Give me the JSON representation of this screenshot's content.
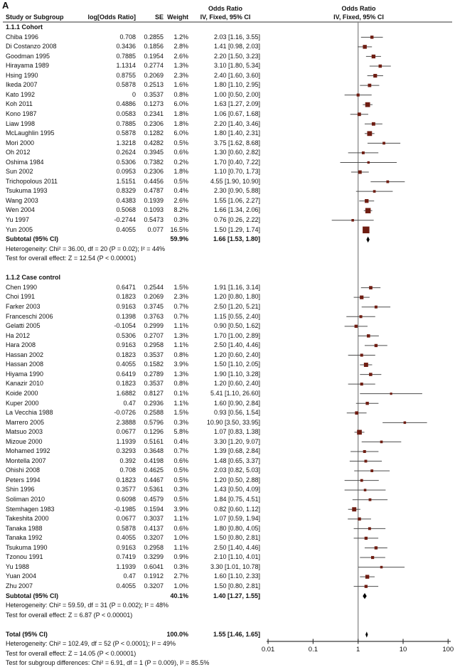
{
  "figure_label": "A",
  "columns": {
    "study": "Study or Subgroup",
    "logor": "log[Odds Ratio]",
    "se": "SE",
    "weight": "Weight",
    "or_line1": "Odds Ratio",
    "or_line2": "IV, Fixed, 95% CI"
  },
  "colors": {
    "marker": "#6f1d12",
    "ci_line": "#4d4d4d",
    "diamond": "#000000",
    "axis": "#3a3a3a",
    "no_effect_line": "#808080",
    "header_rule": "#333333",
    "text": "#111111"
  },
  "chart_data": {
    "type": "forest",
    "effect_measure": "Odds Ratio, IV, Fixed, 95% CI",
    "axis": {
      "scale": "log",
      "ticks": [
        "0.01",
        "0.1",
        "1",
        "10",
        "100"
      ],
      "min": 0.01,
      "max": 100
    },
    "sections": [
      {
        "label": "1.1.1 Cohort",
        "studies": [
          {
            "name": "Chiba 1996",
            "logor": "0.708",
            "se": "0.2855",
            "weight": "1.2%",
            "or": 2.03,
            "lo": 1.16,
            "hi": 3.55
          },
          {
            "name": "Di Costanzo 2008",
            "logor": "0.3436",
            "se": "0.1856",
            "weight": "2.8%",
            "or": 1.41,
            "lo": 0.98,
            "hi": 2.03
          },
          {
            "name": "Goodman 1995",
            "logor": "0.7885",
            "se": "0.1954",
            "weight": "2.6%",
            "or": 2.2,
            "lo": 1.5,
            "hi": 3.23
          },
          {
            "name": "Hirayama 1989",
            "logor": "1.1314",
            "se": "0.2774",
            "weight": "1.3%",
            "or": 3.1,
            "lo": 1.8,
            "hi": 5.34
          },
          {
            "name": "Hsing 1990",
            "logor": "0.8755",
            "se": "0.2069",
            "weight": "2.3%",
            "or": 2.4,
            "lo": 1.6,
            "hi": 3.6
          },
          {
            "name": "Ikeda 2007",
            "logor": "0.5878",
            "se": "0.2513",
            "weight": "1.6%",
            "or": 1.8,
            "lo": 1.1,
            "hi": 2.95
          },
          {
            "name": "Kato 1992",
            "logor": "0",
            "se": "0.3537",
            "weight": "0.8%",
            "or": 1.0,
            "lo": 0.5,
            "hi": 2.0
          },
          {
            "name": "Koh 2011",
            "logor": "0.4886",
            "se": "0.1273",
            "weight": "6.0%",
            "or": 1.63,
            "lo": 1.27,
            "hi": 2.09
          },
          {
            "name": "Kono 1987",
            "logor": "0.0583",
            "se": "0.2341",
            "weight": "1.8%",
            "or": 1.06,
            "lo": 0.67,
            "hi": 1.68
          },
          {
            "name": "Liaw 1998",
            "logor": "0.7885",
            "se": "0.2306",
            "weight": "1.8%",
            "or": 2.2,
            "lo": 1.4,
            "hi": 3.46
          },
          {
            "name": "McLaughlin 1995",
            "logor": "0.5878",
            "se": "0.1282",
            "weight": "6.0%",
            "or": 1.8,
            "lo": 1.4,
            "hi": 2.31
          },
          {
            "name": "Mori 2000",
            "logor": "1.3218",
            "se": "0.4282",
            "weight": "0.5%",
            "or": 3.75,
            "lo": 1.62,
            "hi": 8.68
          },
          {
            "name": "Oh 2012",
            "logor": "0.2624",
            "se": "0.3945",
            "weight": "0.6%",
            "or": 1.3,
            "lo": 0.6,
            "hi": 2.82
          },
          {
            "name": "Oshima 1984",
            "logor": "0.5306",
            "se": "0.7382",
            "weight": "0.2%",
            "or": 1.7,
            "lo": 0.4,
            "hi": 7.22
          },
          {
            "name": "Sun 2002",
            "logor": "0.0953",
            "se": "0.2306",
            "weight": "1.8%",
            "or": 1.1,
            "lo": 0.7,
            "hi": 1.73
          },
          {
            "name": "Trichopolous 2011",
            "logor": "1.5151",
            "se": "0.4456",
            "weight": "0.5%",
            "or": 4.55,
            "lo": 1.9,
            "hi": 10.9
          },
          {
            "name": "Tsukuma 1993",
            "logor": "0.8329",
            "se": "0.4787",
            "weight": "0.4%",
            "or": 2.3,
            "lo": 0.9,
            "hi": 5.88
          },
          {
            "name": "Wang 2003",
            "logor": "0.4383",
            "se": "0.1939",
            "weight": "2.6%",
            "or": 1.55,
            "lo": 1.06,
            "hi": 2.27
          },
          {
            "name": "Wen 2004",
            "logor": "0.5068",
            "se": "0.1093",
            "weight": "8.2%",
            "or": 1.66,
            "lo": 1.34,
            "hi": 2.06
          },
          {
            "name": "Yu 1997",
            "logor": "-0.2744",
            "se": "0.5473",
            "weight": "0.3%",
            "or": 0.76,
            "lo": 0.26,
            "hi": 2.22
          },
          {
            "name": "Yun 2005",
            "logor": "0.4055",
            "se": "0.077",
            "weight": "16.5%",
            "or": 1.5,
            "lo": 1.29,
            "hi": 1.74
          }
        ],
        "subtotal": {
          "label": "Subtotal (95% CI)",
          "weight": "59.9%",
          "or": 1.66,
          "lo": 1.53,
          "hi": 1.8
        },
        "heterogeneity": "Heterogeneity: Chi² = 36.00, df = 20 (P = 0.02); I² = 44%",
        "overall_effect": "Test for overall effect: Z = 12.54 (P < 0.00001)"
      },
      {
        "label": "1.1.2 Case control",
        "studies": [
          {
            "name": "Chen 1990",
            "logor": "0.6471",
            "se": "0.2544",
            "weight": "1.5%",
            "or": 1.91,
            "lo": 1.16,
            "hi": 3.14
          },
          {
            "name": "Choi 1991",
            "logor": "0.1823",
            "se": "0.2069",
            "weight": "2.3%",
            "or": 1.2,
            "lo": 0.8,
            "hi": 1.8
          },
          {
            "name": "Farker 2003",
            "logor": "0.9163",
            "se": "0.3745",
            "weight": "0.7%",
            "or": 2.5,
            "lo": 1.2,
            "hi": 5.21
          },
          {
            "name": "Franceschi 2006",
            "logor": "0.1398",
            "se": "0.3763",
            "weight": "0.7%",
            "or": 1.15,
            "lo": 0.55,
            "hi": 2.4
          },
          {
            "name": "Gelatti 2005",
            "logor": "-0.1054",
            "se": "0.2999",
            "weight": "1.1%",
            "or": 0.9,
            "lo": 0.5,
            "hi": 1.62
          },
          {
            "name": "Ha 2012",
            "logor": "0.5306",
            "se": "0.2707",
            "weight": "1.3%",
            "or": 1.7,
            "lo": 1.0,
            "hi": 2.89
          },
          {
            "name": "Hara 2008",
            "logor": "0.9163",
            "se": "0.2958",
            "weight": "1.1%",
            "or": 2.5,
            "lo": 1.4,
            "hi": 4.46
          },
          {
            "name": "Hassan 2002",
            "logor": "0.1823",
            "se": "0.3537",
            "weight": "0.8%",
            "or": 1.2,
            "lo": 0.6,
            "hi": 2.4
          },
          {
            "name": "Hassan 2008",
            "logor": "0.4055",
            "se": "0.1582",
            "weight": "3.9%",
            "or": 1.5,
            "lo": 1.1,
            "hi": 2.05
          },
          {
            "name": "Hiyama 1990",
            "logor": "0.6419",
            "se": "0.2789",
            "weight": "1.3%",
            "or": 1.9,
            "lo": 1.1,
            "hi": 3.28
          },
          {
            "name": "Kanazir 2010",
            "logor": "0.1823",
            "se": "0.3537",
            "weight": "0.8%",
            "or": 1.2,
            "lo": 0.6,
            "hi": 2.4
          },
          {
            "name": "Koide 2000",
            "logor": "1.6882",
            "se": "0.8127",
            "weight": "0.1%",
            "or": 5.41,
            "lo": 1.1,
            "hi": 26.6
          },
          {
            "name": "Kuper 2000",
            "logor": "0.47",
            "se": "0.2936",
            "weight": "1.1%",
            "or": 1.6,
            "lo": 0.9,
            "hi": 2.84
          },
          {
            "name": "La Vecchia 1988",
            "logor": "-0.0726",
            "se": "0.2588",
            "weight": "1.5%",
            "or": 0.93,
            "lo": 0.56,
            "hi": 1.54
          },
          {
            "name": "Marrero 2005",
            "logor": "2.3888",
            "se": "0.5796",
            "weight": "0.3%",
            "or": 10.9,
            "lo": 3.5,
            "hi": 33.95
          },
          {
            "name": "Matsuo 2003",
            "logor": "0.0677",
            "se": "0.1296",
            "weight": "5.8%",
            "or": 1.07,
            "lo": 0.83,
            "hi": 1.38
          },
          {
            "name": "Mizoue 2000",
            "logor": "1.1939",
            "se": "0.5161",
            "weight": "0.4%",
            "or": 3.3,
            "lo": 1.2,
            "hi": 9.07
          },
          {
            "name": "Mohamed 1992",
            "logor": "0.3293",
            "se": "0.3648",
            "weight": "0.7%",
            "or": 1.39,
            "lo": 0.68,
            "hi": 2.84
          },
          {
            "name": "Montella 2007",
            "logor": "0.392",
            "se": "0.4198",
            "weight": "0.6%",
            "or": 1.48,
            "lo": 0.65,
            "hi": 3.37
          },
          {
            "name": "Ohishi 2008",
            "logor": "0.708",
            "se": "0.4625",
            "weight": "0.5%",
            "or": 2.03,
            "lo": 0.82,
            "hi": 5.03
          },
          {
            "name": "Peters 1994",
            "logor": "0.1823",
            "se": "0.4467",
            "weight": "0.5%",
            "or": 1.2,
            "lo": 0.5,
            "hi": 2.88
          },
          {
            "name": "Shin 1996",
            "logor": "0.3577",
            "se": "0.5361",
            "weight": "0.3%",
            "or": 1.43,
            "lo": 0.5,
            "hi": 4.09
          },
          {
            "name": "Soliman 2010",
            "logor": "0.6098",
            "se": "0.4579",
            "weight": "0.5%",
            "or": 1.84,
            "lo": 0.75,
            "hi": 4.51
          },
          {
            "name": "Stemhagen 1983",
            "logor": "-0.1985",
            "se": "0.1594",
            "weight": "3.9%",
            "or": 0.82,
            "lo": 0.6,
            "hi": 1.12
          },
          {
            "name": "Takeshita 2000",
            "logor": "0.0677",
            "se": "0.3037",
            "weight": "1.1%",
            "or": 1.07,
            "lo": 0.59,
            "hi": 1.94
          },
          {
            "name": "Tanaka 1988",
            "logor": "0.5878",
            "se": "0.4137",
            "weight": "0.6%",
            "or": 1.8,
            "lo": 0.8,
            "hi": 4.05
          },
          {
            "name": "Tanaka 1992",
            "logor": "0.4055",
            "se": "0.3207",
            "weight": "1.0%",
            "or": 1.5,
            "lo": 0.8,
            "hi": 2.81
          },
          {
            "name": "Tsukuma 1990",
            "logor": "0.9163",
            "se": "0.2958",
            "weight": "1.1%",
            "or": 2.5,
            "lo": 1.4,
            "hi": 4.46
          },
          {
            "name": "Tzonou 1991",
            "logor": "0.7419",
            "se": "0.3299",
            "weight": "0.9%",
            "or": 2.1,
            "lo": 1.1,
            "hi": 4.01
          },
          {
            "name": "Yu 1988",
            "logor": "1.1939",
            "se": "0.6041",
            "weight": "0.3%",
            "or": 3.3,
            "lo": 1.01,
            "hi": 10.78
          },
          {
            "name": "Yuan 2004",
            "logor": "0.47",
            "se": "0.1912",
            "weight": "2.7%",
            "or": 1.6,
            "lo": 1.1,
            "hi": 2.33
          },
          {
            "name": "Zhu 2007",
            "logor": "0.4055",
            "se": "0.3207",
            "weight": "1.0%",
            "or": 1.5,
            "lo": 0.8,
            "hi": 2.81
          }
        ],
        "subtotal": {
          "label": "Subtotal (95% CI)",
          "weight": "40.1%",
          "or": 1.4,
          "lo": 1.27,
          "hi": 1.55
        },
        "heterogeneity": "Heterogeneity: Chi² = 59.59, df = 31 (P = 0.002); I² = 48%",
        "overall_effect": "Test for overall effect: Z = 6.87 (P < 0.00001)"
      }
    ],
    "total": {
      "label": "Total (95% CI)",
      "weight": "100.0%",
      "or": 1.55,
      "lo": 1.46,
      "hi": 1.65,
      "heterogeneity": "Heterogeneity: Chi² = 102.49, df = 52 (P < 0.0001); I² = 49%",
      "overall_effect": "Test for overall effect: Z = 14.05 (P < 0.00001)",
      "subgroup_differences": "Test for subgroup differences: Chi² = 6.91, df = 1 (P = 0.009), I² = 85.5%"
    }
  }
}
